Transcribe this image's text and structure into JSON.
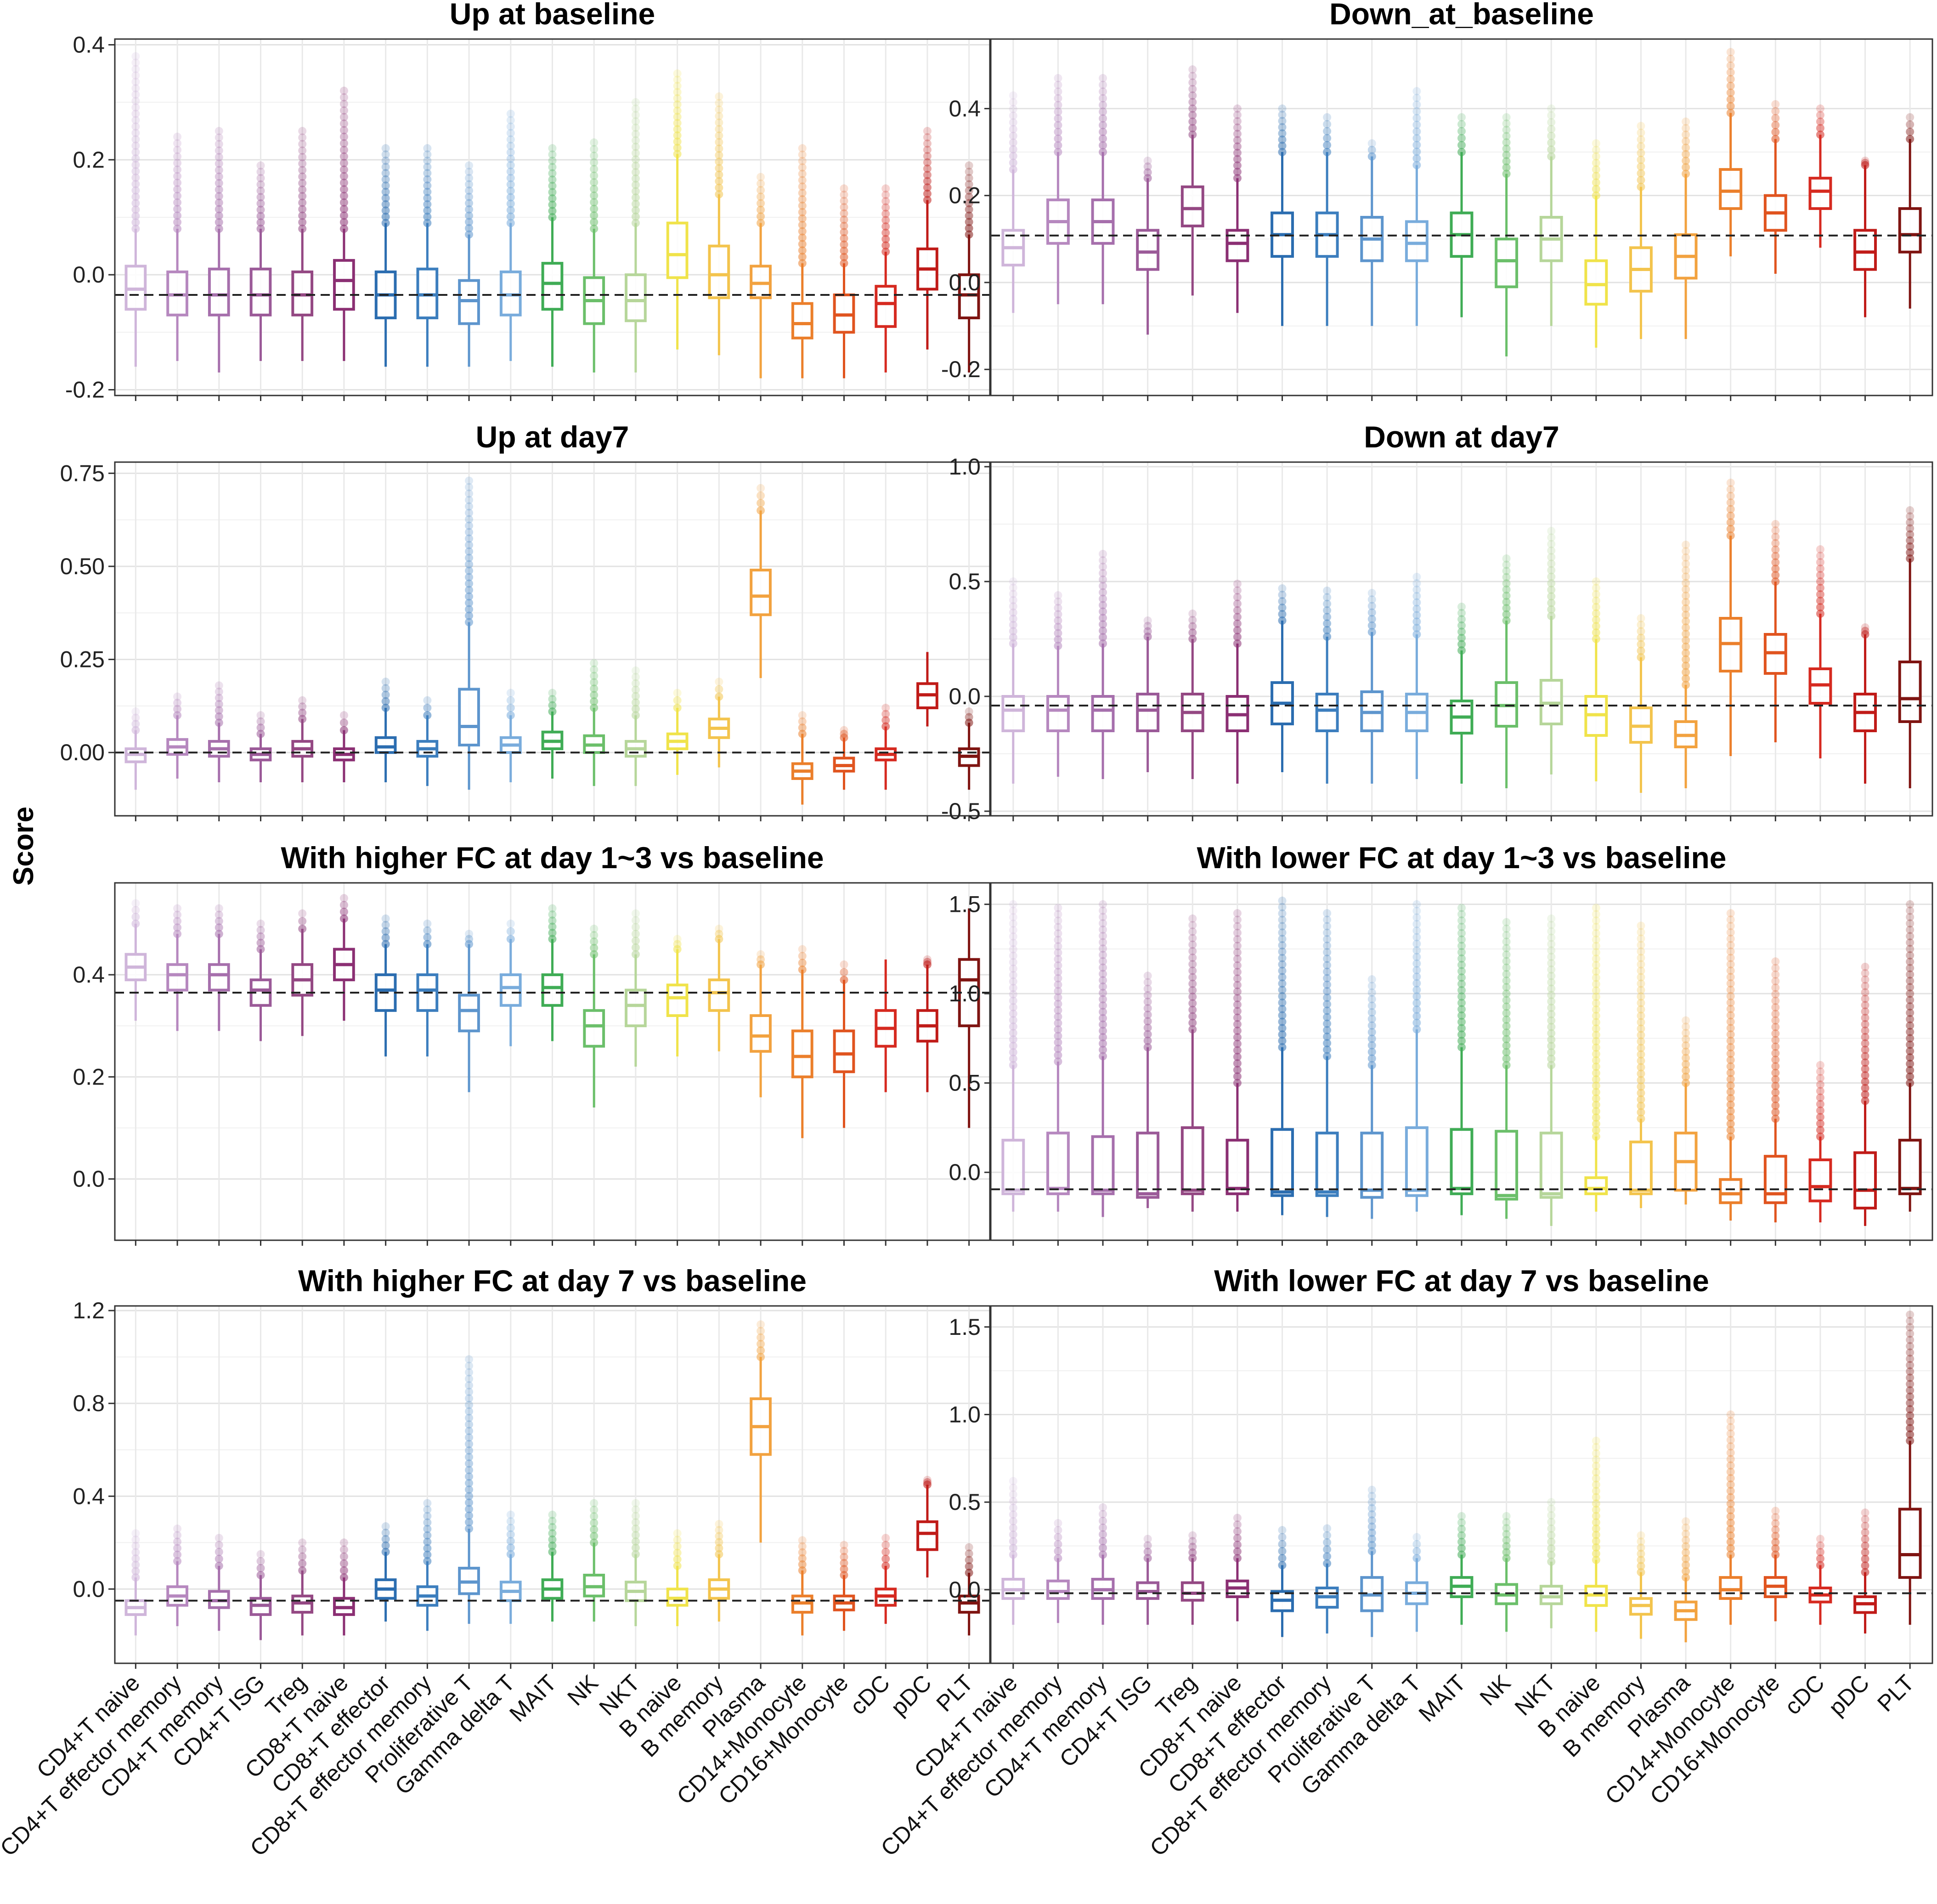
{
  "figure": {
    "y_axis_title": "Score",
    "categories": [
      "CD4+T naive",
      "CD4+T effector memory",
      "CD4+T memory",
      "CD4+T ISG",
      "Treg",
      "CD8+T naive",
      "CD8+T effector",
      "CD8+T effector memory",
      "Proliferative T",
      "Gamma delta T",
      "MAIT",
      "NK",
      "NKT",
      "B naive",
      "B memory",
      "Plasma",
      "CD14+Monocyte",
      "CD16+Monocyte",
      "cDC",
      "pDC",
      "PLT"
    ],
    "colors": [
      "#cfb5da",
      "#b688bf",
      "#a66fac",
      "#9b5a98",
      "#944883",
      "#8b2f73",
      "#2b6db0",
      "#3c7ebe",
      "#5d95cd",
      "#79acdc",
      "#3fac55",
      "#6bbf6a",
      "#b6d69a",
      "#f0e34a",
      "#f3c44d",
      "#f2a23f",
      "#eb7f2b",
      "#e0541f",
      "#d62a20",
      "#c01b18",
      "#7f1411"
    ]
  },
  "chart_data": [
    {
      "type": "box",
      "title": "Up at baseline",
      "ylim": [
        -0.21,
        0.41
      ],
      "yticks": [
        -0.2,
        0.0,
        0.2,
        0.4
      ],
      "ytick_labels": [
        "-0.2",
        "0.0",
        "0.2",
        "0.4"
      ],
      "reference_line": -0.035,
      "q1": [
        -0.06,
        -0.07,
        -0.07,
        -0.07,
        -0.07,
        -0.06,
        -0.075,
        -0.075,
        -0.085,
        -0.07,
        -0.06,
        -0.085,
        -0.08,
        -0.005,
        -0.04,
        -0.04,
        -0.11,
        -0.1,
        -0.09,
        -0.025,
        -0.075
      ],
      "median": [
        -0.025,
        -0.035,
        -0.035,
        -0.035,
        -0.035,
        -0.01,
        -0.035,
        -0.035,
        -0.045,
        -0.035,
        -0.015,
        -0.045,
        -0.045,
        0.035,
        0.0,
        -0.015,
        -0.085,
        -0.07,
        -0.05,
        0.01,
        -0.035
      ],
      "q3": [
        0.015,
        0.005,
        0.01,
        0.01,
        0.005,
        0.025,
        0.005,
        0.01,
        -0.01,
        0.005,
        0.02,
        -0.005,
        0.0,
        0.09,
        0.05,
        0.015,
        -0.05,
        -0.035,
        -0.02,
        0.045,
        0.0
      ],
      "whisker_low": [
        -0.16,
        -0.15,
        -0.17,
        -0.15,
        -0.15,
        -0.15,
        -0.16,
        -0.16,
        -0.16,
        -0.15,
        -0.16,
        -0.17,
        -0.17,
        -0.13,
        -0.14,
        -0.18,
        -0.18,
        -0.18,
        -0.17,
        -0.13,
        -0.17
      ],
      "whisker_high": [
        0.08,
        0.08,
        0.08,
        0.08,
        0.08,
        0.08,
        0.09,
        0.09,
        0.07,
        0.09,
        0.1,
        0.08,
        0.09,
        0.21,
        0.14,
        0.09,
        0.02,
        0.02,
        0.04,
        0.13,
        0.07
      ],
      "outliers_high": [
        0.38,
        0.24,
        0.25,
        0.19,
        0.25,
        0.32,
        0.22,
        0.22,
        0.19,
        0.28,
        0.22,
        0.23,
        0.3,
        0.35,
        0.31,
        0.17,
        0.22,
        0.15,
        0.15,
        0.25,
        0.19
      ]
    },
    {
      "type": "box",
      "title": "Down_at_baseline",
      "ylim": [
        -0.26,
        0.56
      ],
      "yticks": [
        -0.2,
        0.0,
        0.2,
        0.4
      ],
      "ytick_labels": [
        "-0.2",
        "0.0",
        "0.2",
        "0.4"
      ],
      "reference_line": 0.108,
      "q1": [
        0.04,
        0.09,
        0.09,
        0.03,
        0.13,
        0.05,
        0.06,
        0.06,
        0.05,
        0.05,
        0.06,
        -0.01,
        0.05,
        -0.05,
        -0.02,
        0.01,
        0.17,
        0.12,
        0.17,
        0.03,
        0.07
      ],
      "median": [
        0.08,
        0.14,
        0.14,
        0.07,
        0.17,
        0.09,
        0.11,
        0.11,
        0.1,
        0.09,
        0.11,
        0.05,
        0.1,
        -0.005,
        0.03,
        0.06,
        0.21,
        0.16,
        0.21,
        0.07,
        0.11
      ],
      "q3": [
        0.12,
        0.19,
        0.19,
        0.12,
        0.22,
        0.12,
        0.16,
        0.16,
        0.15,
        0.14,
        0.16,
        0.1,
        0.15,
        0.05,
        0.08,
        0.11,
        0.26,
        0.2,
        0.24,
        0.12,
        0.17
      ],
      "whisker_low": [
        -0.07,
        -0.05,
        -0.05,
        -0.12,
        -0.03,
        -0.07,
        -0.1,
        -0.1,
        -0.1,
        -0.1,
        -0.08,
        -0.17,
        -0.1,
        -0.15,
        -0.13,
        -0.13,
        0.06,
        0.02,
        0.08,
        -0.08,
        -0.06
      ],
      "whisker_high": [
        0.26,
        0.3,
        0.3,
        0.24,
        0.34,
        0.24,
        0.3,
        0.3,
        0.29,
        0.27,
        0.3,
        0.25,
        0.29,
        0.2,
        0.22,
        0.25,
        0.39,
        0.33,
        0.34,
        0.27,
        0.33
      ],
      "outliers_high": [
        0.43,
        0.47,
        0.47,
        0.28,
        0.49,
        0.4,
        0.4,
        0.38,
        0.32,
        0.44,
        0.38,
        0.38,
        0.4,
        0.32,
        0.36,
        0.37,
        0.53,
        0.41,
        0.4,
        0.28,
        0.38
      ]
    },
    {
      "type": "box",
      "title": "Up at day7",
      "ylim": [
        -0.17,
        0.78
      ],
      "yticks": [
        0.0,
        0.25,
        0.5,
        0.75
      ],
      "ytick_labels": [
        "0.00",
        "0.25",
        "0.50",
        "0.75"
      ],
      "reference_line": 0.0,
      "q1": [
        -0.025,
        -0.005,
        -0.01,
        -0.02,
        -0.01,
        -0.02,
        0.0,
        -0.01,
        0.02,
        0.0,
        0.01,
        0.0,
        -0.01,
        0.01,
        0.04,
        0.37,
        -0.07,
        -0.05,
        -0.02,
        0.12,
        -0.035
      ],
      "median": [
        -0.005,
        0.015,
        0.01,
        -0.005,
        0.01,
        -0.005,
        0.015,
        0.01,
        0.07,
        0.02,
        0.03,
        0.02,
        0.01,
        0.03,
        0.065,
        0.42,
        -0.05,
        -0.035,
        -0.005,
        0.155,
        -0.01
      ],
      "q3": [
        0.01,
        0.035,
        0.03,
        0.01,
        0.03,
        0.01,
        0.04,
        0.03,
        0.17,
        0.04,
        0.055,
        0.045,
        0.03,
        0.05,
        0.09,
        0.49,
        -0.03,
        -0.015,
        0.01,
        0.185,
        0.01
      ],
      "whisker_low": [
        -0.1,
        -0.07,
        -0.08,
        -0.08,
        -0.08,
        -0.08,
        -0.08,
        -0.09,
        -0.1,
        -0.08,
        -0.07,
        -0.09,
        -0.09,
        -0.06,
        -0.04,
        0.2,
        -0.14,
        -0.1,
        -0.1,
        0.07,
        -0.1
      ],
      "whisker_high": [
        0.06,
        0.1,
        0.08,
        0.05,
        0.09,
        0.06,
        0.12,
        0.1,
        0.35,
        0.1,
        0.11,
        0.12,
        0.1,
        0.12,
        0.15,
        0.65,
        0.05,
        0.04,
        0.07,
        0.27,
        0.08
      ],
      "outliers_high": [
        0.11,
        0.15,
        0.18,
        0.1,
        0.14,
        0.1,
        0.19,
        0.14,
        0.73,
        0.16,
        0.16,
        0.24,
        0.22,
        0.16,
        0.19,
        0.71,
        0.1,
        0.06,
        0.12,
        0.27,
        0.11
      ]
    },
    {
      "type": "box",
      "title": "Down at day7",
      "ylim": [
        -0.52,
        1.02
      ],
      "yticks": [
        -0.5,
        0.0,
        0.5,
        1.0
      ],
      "ytick_labels": [
        "-0.5",
        "0.0",
        "0.5",
        "1.0"
      ],
      "reference_line": -0.04,
      "q1": [
        -0.15,
        -0.15,
        -0.15,
        -0.15,
        -0.15,
        -0.15,
        -0.12,
        -0.15,
        -0.15,
        -0.15,
        -0.16,
        -0.13,
        -0.12,
        -0.17,
        -0.2,
        -0.22,
        0.11,
        0.1,
        -0.03,
        -0.15,
        -0.11
      ],
      "median": [
        -0.06,
        -0.06,
        -0.06,
        -0.06,
        -0.07,
        -0.08,
        -0.03,
        -0.06,
        -0.07,
        -0.07,
        -0.09,
        -0.04,
        -0.03,
        -0.08,
        -0.13,
        -0.17,
        0.23,
        0.19,
        0.05,
        -0.07,
        -0.01
      ],
      "q3": [
        0.0,
        0.0,
        0.0,
        0.01,
        0.01,
        0.0,
        0.06,
        0.01,
        0.02,
        0.01,
        -0.02,
        0.06,
        0.07,
        0.0,
        -0.05,
        -0.11,
        0.34,
        0.27,
        0.12,
        0.01,
        0.15
      ],
      "whisker_low": [
        -0.38,
        -0.35,
        -0.36,
        -0.33,
        -0.36,
        -0.38,
        -0.33,
        -0.38,
        -0.38,
        -0.36,
        -0.38,
        -0.4,
        -0.34,
        -0.37,
        -0.42,
        -0.4,
        -0.26,
        -0.2,
        -0.27,
        -0.38,
        -0.4
      ],
      "whisker_high": [
        0.23,
        0.22,
        0.23,
        0.26,
        0.25,
        0.23,
        0.33,
        0.26,
        0.28,
        0.27,
        0.2,
        0.33,
        0.35,
        0.25,
        0.17,
        0.05,
        0.7,
        0.5,
        0.36,
        0.27,
        0.6
      ],
      "outliers_high": [
        0.5,
        0.44,
        0.62,
        0.33,
        0.36,
        0.49,
        0.47,
        0.46,
        0.45,
        0.52,
        0.39,
        0.6,
        0.72,
        0.5,
        0.34,
        0.66,
        0.93,
        0.75,
        0.64,
        0.3,
        0.81
      ]
    },
    {
      "type": "box",
      "title": "With higher FC at day 1~3 vs baseline",
      "ylim": [
        -0.12,
        0.58
      ],
      "yticks": [
        0.0,
        0.2,
        0.4
      ],
      "ytick_labels": [
        "0.0",
        "0.2",
        "0.4"
      ],
      "reference_line": 0.365,
      "q1": [
        0.39,
        0.37,
        0.37,
        0.34,
        0.36,
        0.39,
        0.33,
        0.33,
        0.29,
        0.34,
        0.34,
        0.26,
        0.3,
        0.32,
        0.33,
        0.25,
        0.2,
        0.21,
        0.26,
        0.27,
        0.3
      ],
      "median": [
        0.415,
        0.4,
        0.4,
        0.37,
        0.39,
        0.42,
        0.37,
        0.37,
        0.33,
        0.375,
        0.375,
        0.3,
        0.34,
        0.355,
        0.365,
        0.28,
        0.24,
        0.245,
        0.295,
        0.3,
        0.39
      ],
      "q3": [
        0.44,
        0.42,
        0.42,
        0.39,
        0.42,
        0.45,
        0.4,
        0.4,
        0.36,
        0.4,
        0.4,
        0.33,
        0.37,
        0.38,
        0.39,
        0.32,
        0.29,
        0.29,
        0.33,
        0.33,
        0.43
      ],
      "whisker_low": [
        0.31,
        0.29,
        0.29,
        0.27,
        0.28,
        0.31,
        0.24,
        0.24,
        0.17,
        0.26,
        0.27,
        0.14,
        0.22,
        0.24,
        0.25,
        0.16,
        0.08,
        0.1,
        0.17,
        0.17,
        0.1
      ],
      "whisker_high": [
        0.5,
        0.48,
        0.48,
        0.45,
        0.49,
        0.51,
        0.46,
        0.46,
        0.46,
        0.47,
        0.47,
        0.44,
        0.44,
        0.45,
        0.47,
        0.42,
        0.41,
        0.39,
        0.43,
        0.42,
        0.53
      ],
      "outliers_high": [
        0.54,
        0.53,
        0.53,
        0.5,
        0.52,
        0.55,
        0.51,
        0.5,
        0.48,
        0.5,
        0.53,
        0.49,
        0.52,
        0.47,
        0.49,
        0.44,
        0.45,
        0.42,
        0.43,
        0.43,
        0.53
      ]
    },
    {
      "type": "box",
      "title": "With lower FC at day 1~3 vs baseline",
      "ylim": [
        -0.38,
        1.62
      ],
      "yticks": [
        0.0,
        0.5,
        1.0,
        1.5
      ],
      "ytick_labels": [
        "0.0",
        "0.5",
        "1.0",
        "1.5"
      ],
      "reference_line": -0.095,
      "q1": [
        -0.12,
        -0.12,
        -0.12,
        -0.14,
        -0.12,
        -0.12,
        -0.13,
        -0.13,
        -0.14,
        -0.13,
        -0.12,
        -0.15,
        -0.14,
        -0.12,
        -0.12,
        -0.1,
        -0.17,
        -0.17,
        -0.16,
        -0.2,
        -0.12
      ],
      "median": [
        -0.1,
        -0.09,
        -0.1,
        -0.12,
        -0.1,
        -0.09,
        -0.11,
        -0.11,
        -0.1,
        -0.1,
        -0.09,
        -0.13,
        -0.12,
        -0.09,
        -0.1,
        0.06,
        -0.12,
        -0.12,
        -0.08,
        -0.1,
        -0.09
      ],
      "q3": [
        0.18,
        0.22,
        0.2,
        0.22,
        0.25,
        0.18,
        0.24,
        0.22,
        0.22,
        0.25,
        0.24,
        0.23,
        0.22,
        -0.03,
        0.17,
        0.22,
        -0.04,
        0.09,
        0.07,
        0.11,
        0.18
      ],
      "whisker_low": [
        -0.22,
        -0.22,
        -0.25,
        -0.2,
        -0.22,
        -0.22,
        -0.24,
        -0.25,
        -0.26,
        -0.22,
        -0.24,
        -0.26,
        -0.3,
        -0.22,
        -0.2,
        -0.18,
        -0.27,
        -0.28,
        -0.28,
        -0.3,
        -0.22
      ],
      "whisker_high": [
        0.6,
        0.62,
        0.65,
        0.7,
        0.8,
        0.5,
        0.7,
        0.65,
        0.6,
        0.8,
        0.7,
        0.6,
        0.6,
        0.2,
        0.3,
        0.5,
        0.2,
        0.3,
        0.2,
        0.4,
        0.5
      ],
      "outliers_high": [
        1.5,
        1.48,
        1.5,
        1.1,
        1.42,
        1.45,
        1.52,
        1.45,
        1.08,
        1.5,
        1.48,
        1.4,
        1.42,
        1.48,
        1.38,
        0.85,
        1.45,
        1.18,
        0.6,
        1.15,
        1.5
      ]
    },
    {
      "type": "box",
      "title": "With higher FC at day 7 vs baseline",
      "ylim": [
        -0.32,
        1.22
      ],
      "yticks": [
        0.0,
        0.4,
        0.8,
        1.2
      ],
      "ytick_labels": [
        "0.0",
        "0.4",
        "0.8",
        "1.2"
      ],
      "reference_line": -0.05,
      "q1": [
        -0.11,
        -0.07,
        -0.08,
        -0.11,
        -0.1,
        -0.11,
        -0.04,
        -0.07,
        -0.02,
        -0.05,
        -0.04,
        -0.03,
        -0.05,
        -0.07,
        -0.04,
        0.58,
        -0.1,
        -0.09,
        -0.07,
        0.17,
        -0.1
      ],
      "median": [
        -0.08,
        -0.03,
        -0.05,
        -0.07,
        -0.06,
        -0.08,
        0.0,
        -0.03,
        0.03,
        -0.01,
        0.0,
        0.01,
        -0.01,
        -0.04,
        0.0,
        0.7,
        -0.06,
        -0.06,
        -0.03,
        0.24,
        -0.06
      ],
      "q3": [
        -0.05,
        0.01,
        -0.01,
        -0.04,
        -0.03,
        -0.04,
        0.04,
        0.01,
        0.09,
        0.03,
        0.04,
        0.06,
        0.03,
        0.0,
        0.04,
        0.82,
        -0.03,
        -0.03,
        0.0,
        0.29,
        -0.03
      ],
      "whisker_low": [
        -0.2,
        -0.16,
        -0.18,
        -0.22,
        -0.2,
        -0.2,
        -0.14,
        -0.18,
        -0.15,
        -0.15,
        -0.14,
        -0.14,
        -0.16,
        -0.16,
        -0.14,
        0.2,
        -0.2,
        -0.18,
        -0.15,
        0.05,
        -0.2
      ],
      "whisker_high": [
        0.05,
        0.12,
        0.1,
        0.06,
        0.08,
        0.05,
        0.16,
        0.12,
        0.26,
        0.15,
        0.16,
        0.2,
        0.15,
        0.1,
        0.15,
        1.0,
        0.08,
        0.06,
        0.1,
        0.45,
        0.07
      ],
      "outliers_high": [
        0.24,
        0.26,
        0.22,
        0.15,
        0.2,
        0.2,
        0.27,
        0.37,
        0.99,
        0.32,
        0.32,
        0.37,
        0.37,
        0.24,
        0.28,
        1.14,
        0.21,
        0.19,
        0.22,
        0.47,
        0.18
      ]
    },
    {
      "type": "box",
      "title": "With lower FC at day 7 vs baseline",
      "ylim": [
        -0.42,
        1.62
      ],
      "yticks": [
        0.0,
        0.5,
        1.0,
        1.5
      ],
      "ytick_labels": [
        "0.0",
        "0.5",
        "1.0",
        "1.5"
      ],
      "reference_line": -0.02,
      "q1": [
        -0.05,
        -0.05,
        -0.05,
        -0.05,
        -0.06,
        -0.04,
        -0.12,
        -0.1,
        -0.12,
        -0.08,
        -0.04,
        -0.08,
        -0.08,
        -0.09,
        -0.14,
        -0.17,
        -0.05,
        -0.04,
        -0.07,
        -0.13,
        0.07
      ],
      "median": [
        0.0,
        -0.01,
        0.0,
        -0.01,
        -0.02,
        0.01,
        -0.06,
        -0.04,
        -0.03,
        -0.02,
        0.02,
        -0.03,
        -0.04,
        -0.03,
        -0.09,
        -0.12,
        0.0,
        0.02,
        -0.03,
        -0.08,
        0.2
      ],
      "q3": [
        0.06,
        0.05,
        0.06,
        0.04,
        0.04,
        0.05,
        -0.01,
        0.01,
        0.07,
        0.04,
        0.07,
        0.03,
        0.02,
        0.02,
        -0.05,
        -0.07,
        0.07,
        0.07,
        0.01,
        -0.04,
        0.46
      ],
      "whisker_low": [
        -0.2,
        -0.19,
        -0.2,
        -0.2,
        -0.2,
        -0.18,
        -0.27,
        -0.25,
        -0.27,
        -0.24,
        -0.2,
        -0.24,
        -0.22,
        -0.24,
        -0.28,
        -0.3,
        -0.2,
        -0.18,
        -0.2,
        -0.25,
        -0.2
      ],
      "whisker_high": [
        0.2,
        0.18,
        0.2,
        0.18,
        0.18,
        0.18,
        0.14,
        0.15,
        0.22,
        0.18,
        0.2,
        0.18,
        0.16,
        0.17,
        0.1,
        0.07,
        0.2,
        0.2,
        0.14,
        0.1,
        0.85
      ],
      "outliers_high": [
        0.62,
        0.38,
        0.47,
        0.29,
        0.31,
        0.41,
        0.34,
        0.35,
        0.57,
        0.3,
        0.42,
        0.42,
        0.5,
        0.85,
        0.31,
        0.39,
        1.0,
        0.45,
        0.29,
        0.44,
        1.57
      ]
    }
  ]
}
